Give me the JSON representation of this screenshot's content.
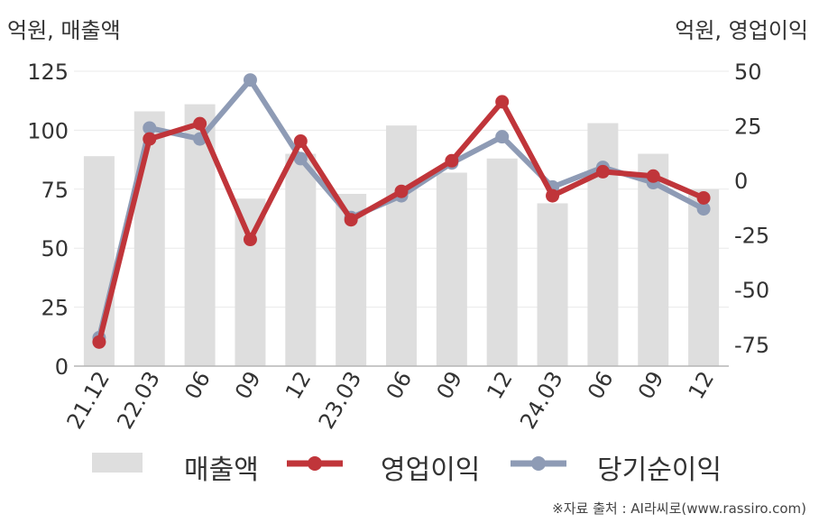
{
  "chart_data": {
    "type": "bar+line",
    "categories": [
      "21.12",
      "22.03",
      "06",
      "09",
      "12",
      "23.03",
      "06",
      "09",
      "12",
      "24.03",
      "06",
      "09",
      "12"
    ],
    "ylabel_left": "억원, 매출액",
    "ylabel_right": "억원, 영업이익",
    "ylim_left": [
      0,
      125
    ],
    "yticks_left": [
      0,
      25,
      50,
      75,
      100,
      125
    ],
    "ylim_right": [
      -85,
      50
    ],
    "yticks_right": [
      -75,
      -50,
      -25,
      0,
      25,
      50
    ],
    "grid": true,
    "legend_position": "bottom",
    "series": [
      {
        "name": "매출액",
        "kind": "bar",
        "axis": "left",
        "color": "#dedede",
        "values": [
          89,
          108,
          111,
          71,
          90,
          73,
          102,
          82,
          88,
          69,
          103,
          90,
          75
        ]
      },
      {
        "name": "영업이익",
        "kind": "line",
        "axis": "right",
        "color": "#c0353a",
        "values": [
          -74,
          19,
          26,
          -27,
          18,
          -18,
          -5,
          9,
          36,
          -7,
          4,
          2,
          -8
        ]
      },
      {
        "name": "당기순이익",
        "kind": "line",
        "axis": "right",
        "color": "#8e9bb5",
        "values": [
          -72,
          24,
          19,
          46,
          10,
          -17,
          -7,
          8,
          20,
          -3,
          6,
          -1,
          -13
        ]
      }
    ]
  },
  "source": "※자료 출처 : AI라씨로(www.rassiro.com)"
}
